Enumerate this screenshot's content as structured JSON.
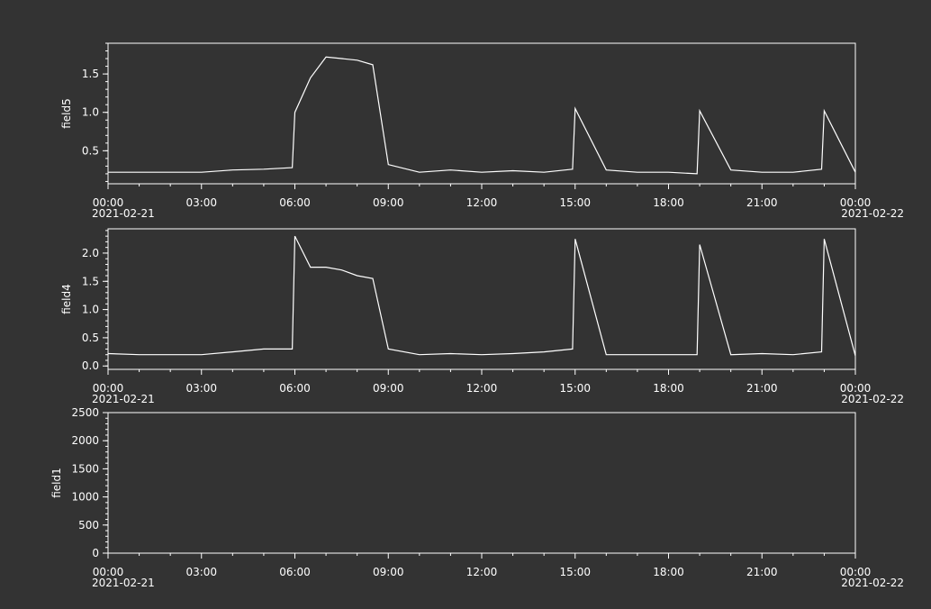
{
  "colors": {
    "background": "#333333",
    "foreground": "#ffffff",
    "trace": "#ffffff"
  },
  "x_axis": {
    "ticks": [
      "00:00",
      "03:00",
      "06:00",
      "09:00",
      "12:00",
      "15:00",
      "18:00",
      "21:00",
      "00:00"
    ],
    "start_date": "2021-02-21",
    "end_date": "2021-02-22"
  },
  "chart_data": [
    {
      "type": "line",
      "ylabel": "field5",
      "ylim": [
        0.07,
        1.9
      ],
      "yticks": [
        "0.5",
        "1.0",
        "1.5"
      ],
      "grid": false,
      "x": [
        "00:00",
        "01:00",
        "02:00",
        "03:00",
        "04:00",
        "05:00",
        "05:55",
        "06:00",
        "06:30",
        "07:00",
        "07:30",
        "08:00",
        "08:30",
        "09:00",
        "10:00",
        "11:00",
        "12:00",
        "13:00",
        "14:00",
        "14:55",
        "15:00",
        "16:00",
        "17:00",
        "18:00",
        "18:55",
        "19:00",
        "20:00",
        "21:00",
        "22:00",
        "22:55",
        "23:00",
        "24:00"
      ],
      "y": [
        0.22,
        0.22,
        0.22,
        0.22,
        0.25,
        0.26,
        0.28,
        1.0,
        1.45,
        1.72,
        1.7,
        1.68,
        1.62,
        0.32,
        0.22,
        0.25,
        0.22,
        0.24,
        0.22,
        0.26,
        1.05,
        0.25,
        0.22,
        0.22,
        0.2,
        1.02,
        0.25,
        0.22,
        0.22,
        0.26,
        1.02,
        0.22
      ]
    },
    {
      "type": "line",
      "ylabel": "field4",
      "ylim": [
        -0.06,
        2.43
      ],
      "yticks": [
        "0.0",
        "0.5",
        "1.0",
        "1.5",
        "2.0"
      ],
      "grid": false,
      "x": [
        "00:00",
        "01:00",
        "02:00",
        "03:00",
        "04:00",
        "05:00",
        "05:55",
        "06:00",
        "06:30",
        "07:00",
        "07:30",
        "08:00",
        "08:30",
        "09:00",
        "10:00",
        "11:00",
        "12:00",
        "13:00",
        "14:00",
        "14:55",
        "15:00",
        "16:00",
        "17:00",
        "18:00",
        "18:55",
        "19:00",
        "20:00",
        "21:00",
        "22:00",
        "22:55",
        "23:00",
        "24:00"
      ],
      "y": [
        0.22,
        0.2,
        0.2,
        0.2,
        0.25,
        0.3,
        0.3,
        2.3,
        1.75,
        1.75,
        1.7,
        1.6,
        1.55,
        0.3,
        0.2,
        0.22,
        0.2,
        0.22,
        0.25,
        0.3,
        2.25,
        0.2,
        0.2,
        0.2,
        0.2,
        2.15,
        0.2,
        0.22,
        0.2,
        0.25,
        2.25,
        0.18
      ]
    },
    {
      "type": "line",
      "ylabel": "field1",
      "ylim": [
        0,
        2500
      ],
      "yticks": [
        "0",
        "500",
        "1000",
        "1500",
        "2000",
        "2500"
      ],
      "grid": false,
      "x": [],
      "y": []
    }
  ]
}
